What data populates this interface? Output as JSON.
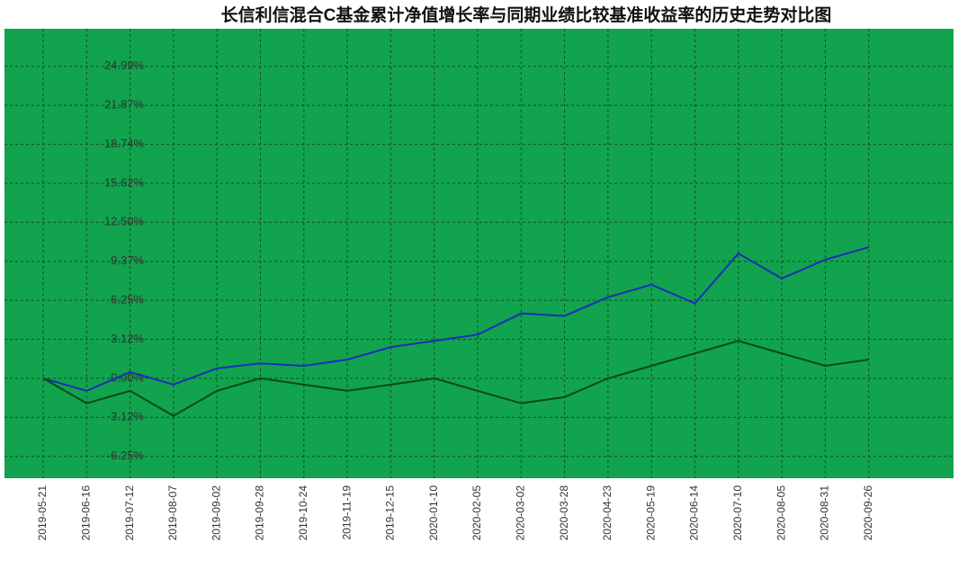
{
  "chart_data": {
    "type": "line",
    "title": "长信利信混合C基金累计净值增长率与同期业绩比较基准收益率的历史走势对比图",
    "categories": [
      "2019-05-21",
      "2019-06-16",
      "2019-07-12",
      "2019-08-07",
      "2019-09-02",
      "2019-09-28",
      "2019-10-24",
      "2019-11-19",
      "2019-12-15",
      "2020-01-10",
      "2020-02-05",
      "2020-03-02",
      "2020-03-28",
      "2020-04-23",
      "2020-05-19",
      "2020-06-14",
      "2020-07-10",
      "2020-08-05",
      "2020-08-31",
      "2020-09-26"
    ],
    "series": [
      {
        "color": "#1a2fb5",
        "values": [
          0,
          -1,
          0.5,
          -0.5,
          0.8,
          1.2,
          1.0,
          1.5,
          2.5,
          3.0,
          3.5,
          5.2,
          5.0,
          6.5,
          7.5,
          6.0,
          10.0,
          8.0,
          9.5,
          10.5
        ]
      },
      {
        "color": "#0b4a12",
        "values": [
          0,
          -2,
          -1,
          -3,
          -1,
          0,
          -0.5,
          -1,
          -0.5,
          0,
          -1,
          -2,
          -1.5,
          0,
          1,
          2,
          3,
          2,
          1,
          1.5
        ]
      }
    ],
    "ylim": [
      -8,
      28
    ],
    "yticks": [
      {
        "value": 24.99,
        "label": "24.99%"
      },
      {
        "value": 21.87,
        "label": "21.87%"
      },
      {
        "value": 18.74,
        "label": "18.74%"
      },
      {
        "value": 15.62,
        "label": "15.62%"
      },
      {
        "value": 12.5,
        "label": "12.50%"
      },
      {
        "value": 9.37,
        "label": "9.37%"
      },
      {
        "value": 6.25,
        "label": "6.25%"
      },
      {
        "value": 3.12,
        "label": "3.12%"
      },
      {
        "value": 0,
        "label": "0.00%"
      },
      {
        "value": -3.12,
        "label": "-3.12%"
      },
      {
        "value": -6.25,
        "label": "-6.25%"
      }
    ],
    "grid": true
  }
}
